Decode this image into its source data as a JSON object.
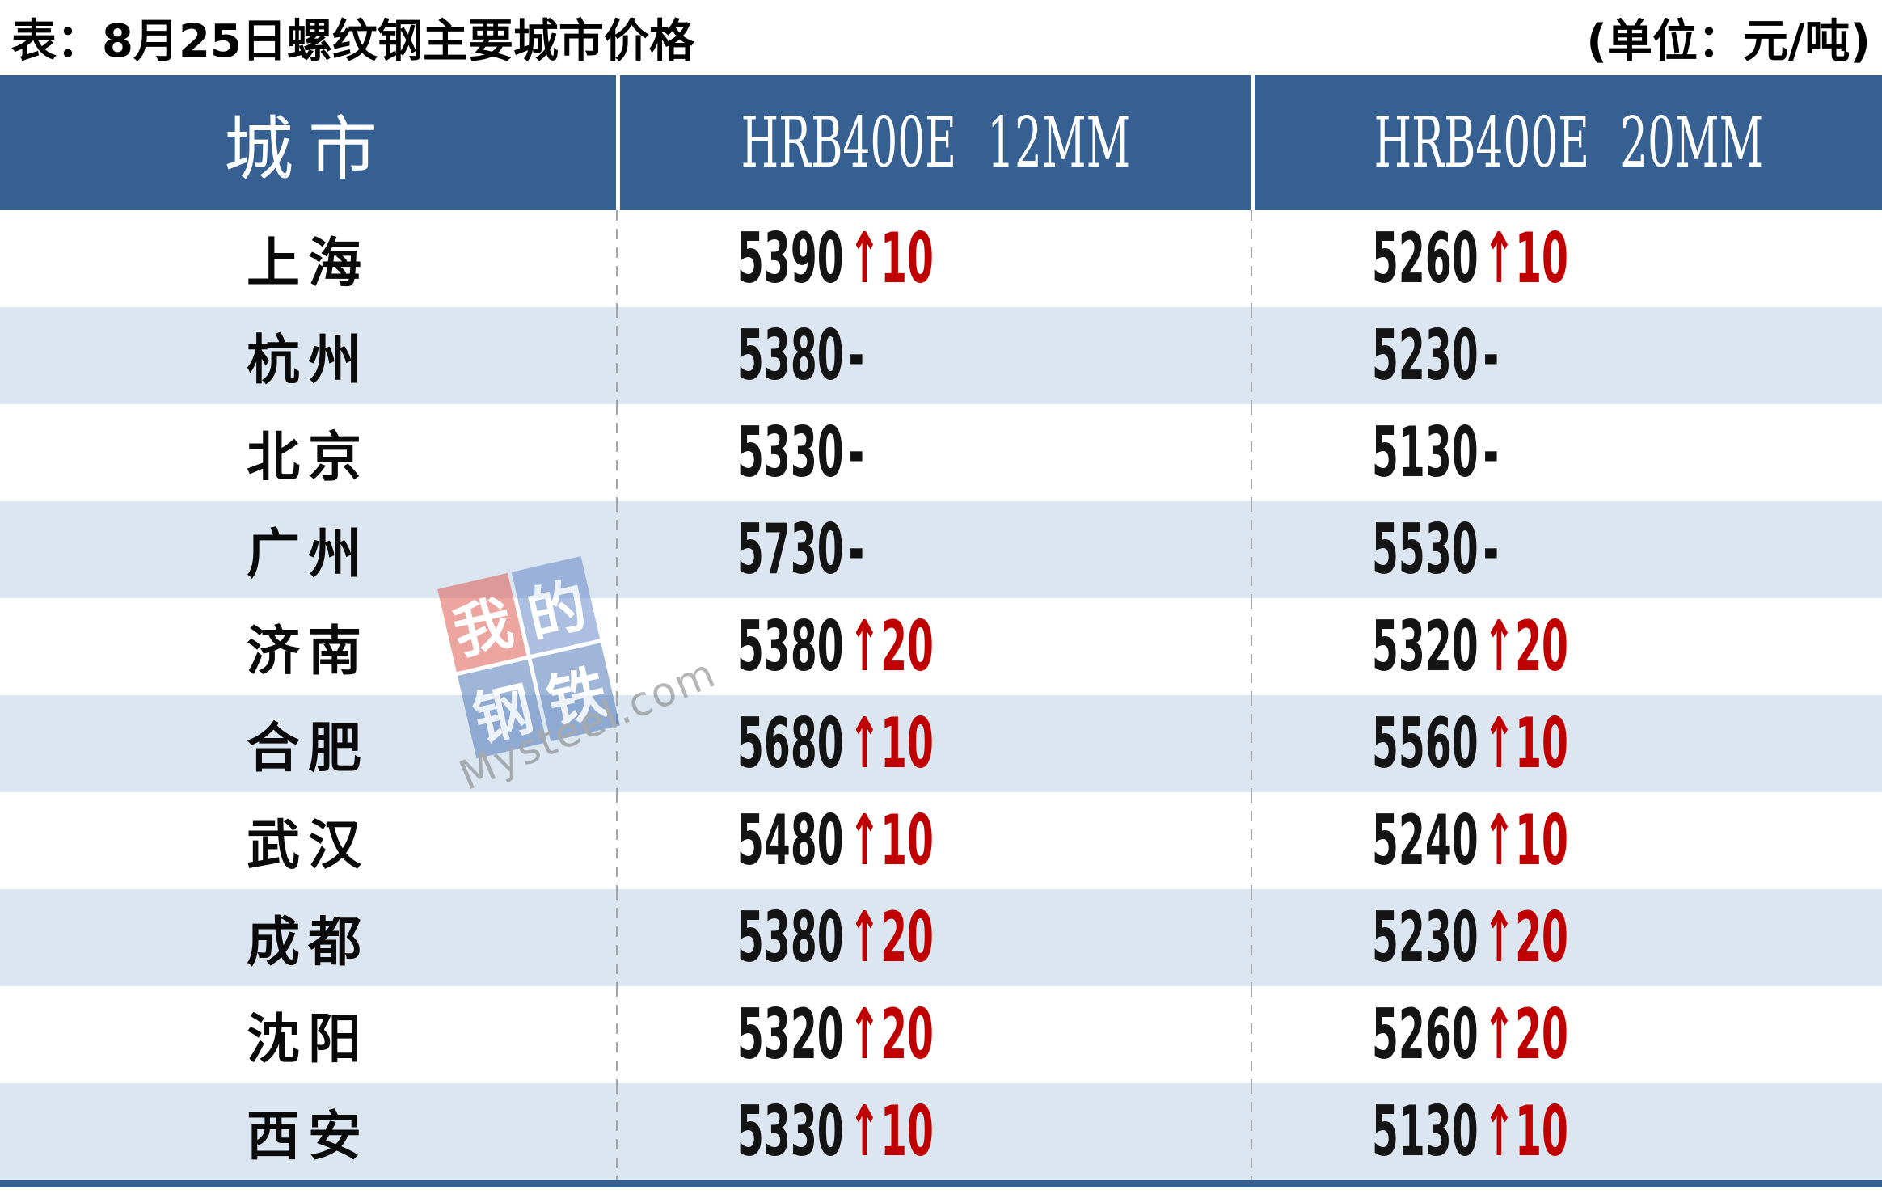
{
  "title": {
    "left": "表：8月25日螺纹钢主要城市价格",
    "right": "(单位：元/吨)"
  },
  "table": {
    "header": [
      "城市",
      "HRB400E 12MM",
      "HRB400E 20MM"
    ],
    "rows": [
      {
        "city": "上海",
        "cells": [
          {
            "price": "5390",
            "change": "↑10"
          },
          {
            "price": "5260",
            "change": "↑10"
          }
        ]
      },
      {
        "city": "杭州",
        "cells": [
          {
            "price": "5380",
            "change": "-"
          },
          {
            "price": "5230",
            "change": "-"
          }
        ]
      },
      {
        "city": "北京",
        "cells": [
          {
            "price": "5330",
            "change": "-"
          },
          {
            "price": "5130",
            "change": "-"
          }
        ]
      },
      {
        "city": "广州",
        "cells": [
          {
            "price": "5730",
            "change": "-"
          },
          {
            "price": "5530",
            "change": "-"
          }
        ]
      },
      {
        "city": "济南",
        "cells": [
          {
            "price": "5380",
            "change": "↑20"
          },
          {
            "price": "5320",
            "change": "↑20"
          }
        ]
      },
      {
        "city": "合肥",
        "cells": [
          {
            "price": "5680",
            "change": "↑10"
          },
          {
            "price": "5560",
            "change": "↑10"
          }
        ]
      },
      {
        "city": "武汉",
        "cells": [
          {
            "price": "5480",
            "change": "↑10"
          },
          {
            "price": "5240",
            "change": "↑10"
          }
        ]
      },
      {
        "city": "成都",
        "cells": [
          {
            "price": "5380",
            "change": "↑20"
          },
          {
            "price": "5230",
            "change": "↑20"
          }
        ]
      },
      {
        "city": "沈阳",
        "cells": [
          {
            "price": "5320",
            "change": "↑20"
          },
          {
            "price": "5260",
            "change": "↑20"
          }
        ]
      },
      {
        "city": "西安",
        "cells": [
          {
            "price": "5330",
            "change": "↑10"
          },
          {
            "price": "5130",
            "change": "↑10"
          }
        ]
      }
    ]
  },
  "watermark": {
    "logo_chars": [
      "我",
      "的",
      "钢",
      "铁"
    ],
    "text": "Mysteel.com"
  },
  "colors": {
    "header_bg": "#366092",
    "alt_row_bg": "#dce6f1",
    "change_up_red": "#c00000",
    "bottom_bar": "#366092",
    "separator_gray": "#a6a6a6"
  },
  "chart_data": {
    "type": "table",
    "title": "表：8月25日螺纹钢主要城市价格",
    "unit": "元/吨",
    "date": "8月25日",
    "columns": [
      "城市",
      "HRB400E 12MM",
      "HRB400E 20MM"
    ],
    "rows": [
      [
        "上海",
        "5390",
        "↑10",
        "5260",
        "↑10"
      ],
      [
        "杭州",
        "5380",
        "-",
        "5230",
        "-"
      ],
      [
        "北京",
        "5330",
        "-",
        "5130",
        "-"
      ],
      [
        "广州",
        "5730",
        "-",
        "5530",
        "-"
      ],
      [
        "济南",
        "5380",
        "↑20",
        "5320",
        "↑20"
      ],
      [
        "合肥",
        "5680",
        "↑10",
        "5560",
        "↑10"
      ],
      [
        "武汉",
        "5480",
        "↑10",
        "5240",
        "↑10"
      ],
      [
        "成都",
        "5380",
        "↑20",
        "5230",
        "↑20"
      ],
      [
        "沈阳",
        "5320",
        "↑20",
        "5260",
        "↑20"
      ],
      [
        "西安",
        "5330",
        "↑10",
        "5130",
        "↑10"
      ]
    ]
  }
}
